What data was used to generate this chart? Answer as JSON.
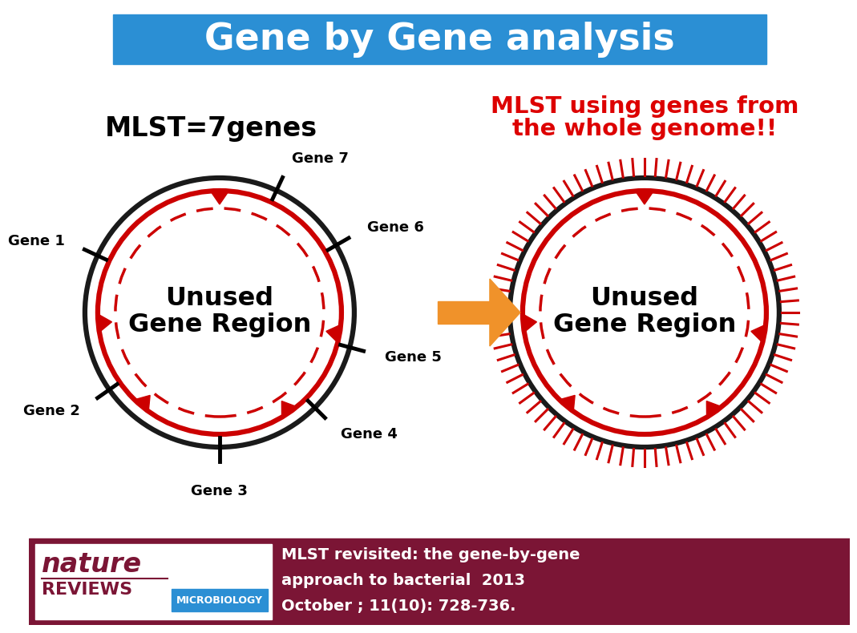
{
  "title": "Gene by Gene analysis",
  "title_bg": "#2b8fd4",
  "title_color": "#ffffff",
  "left_subtitle": "MLST=7genes",
  "right_subtitle_line1": "MLST using genes from",
  "right_subtitle_line2": "the whole genome!!",
  "right_subtitle_color": "#dd0000",
  "circle_color_outer": "#1a1a1a",
  "circle_color_red": "#cc0000",
  "arrow_color": "#cc0000",
  "background_color": "#ffffff",
  "footer_bg": "#7b1535",
  "footer_text_color": "#ffffff",
  "footer_ref_line1": "MLST revisited: the gene-by-gene",
  "footer_ref_line2": "approach to bacterial  2013",
  "footer_ref_line3": "October ; 11(10): 728-736.",
  "orange_arrow": "#f0922a",
  "gene_labels": [
    "Gene 1",
    "Gene 2",
    "Gene 3",
    "Gene 4",
    "Gene 5",
    "Gene 6",
    "Gene 7"
  ],
  "gene_angles_deg": [
    155,
    215,
    270,
    315,
    345,
    30,
    65
  ],
  "n_wg_ticks": 80
}
